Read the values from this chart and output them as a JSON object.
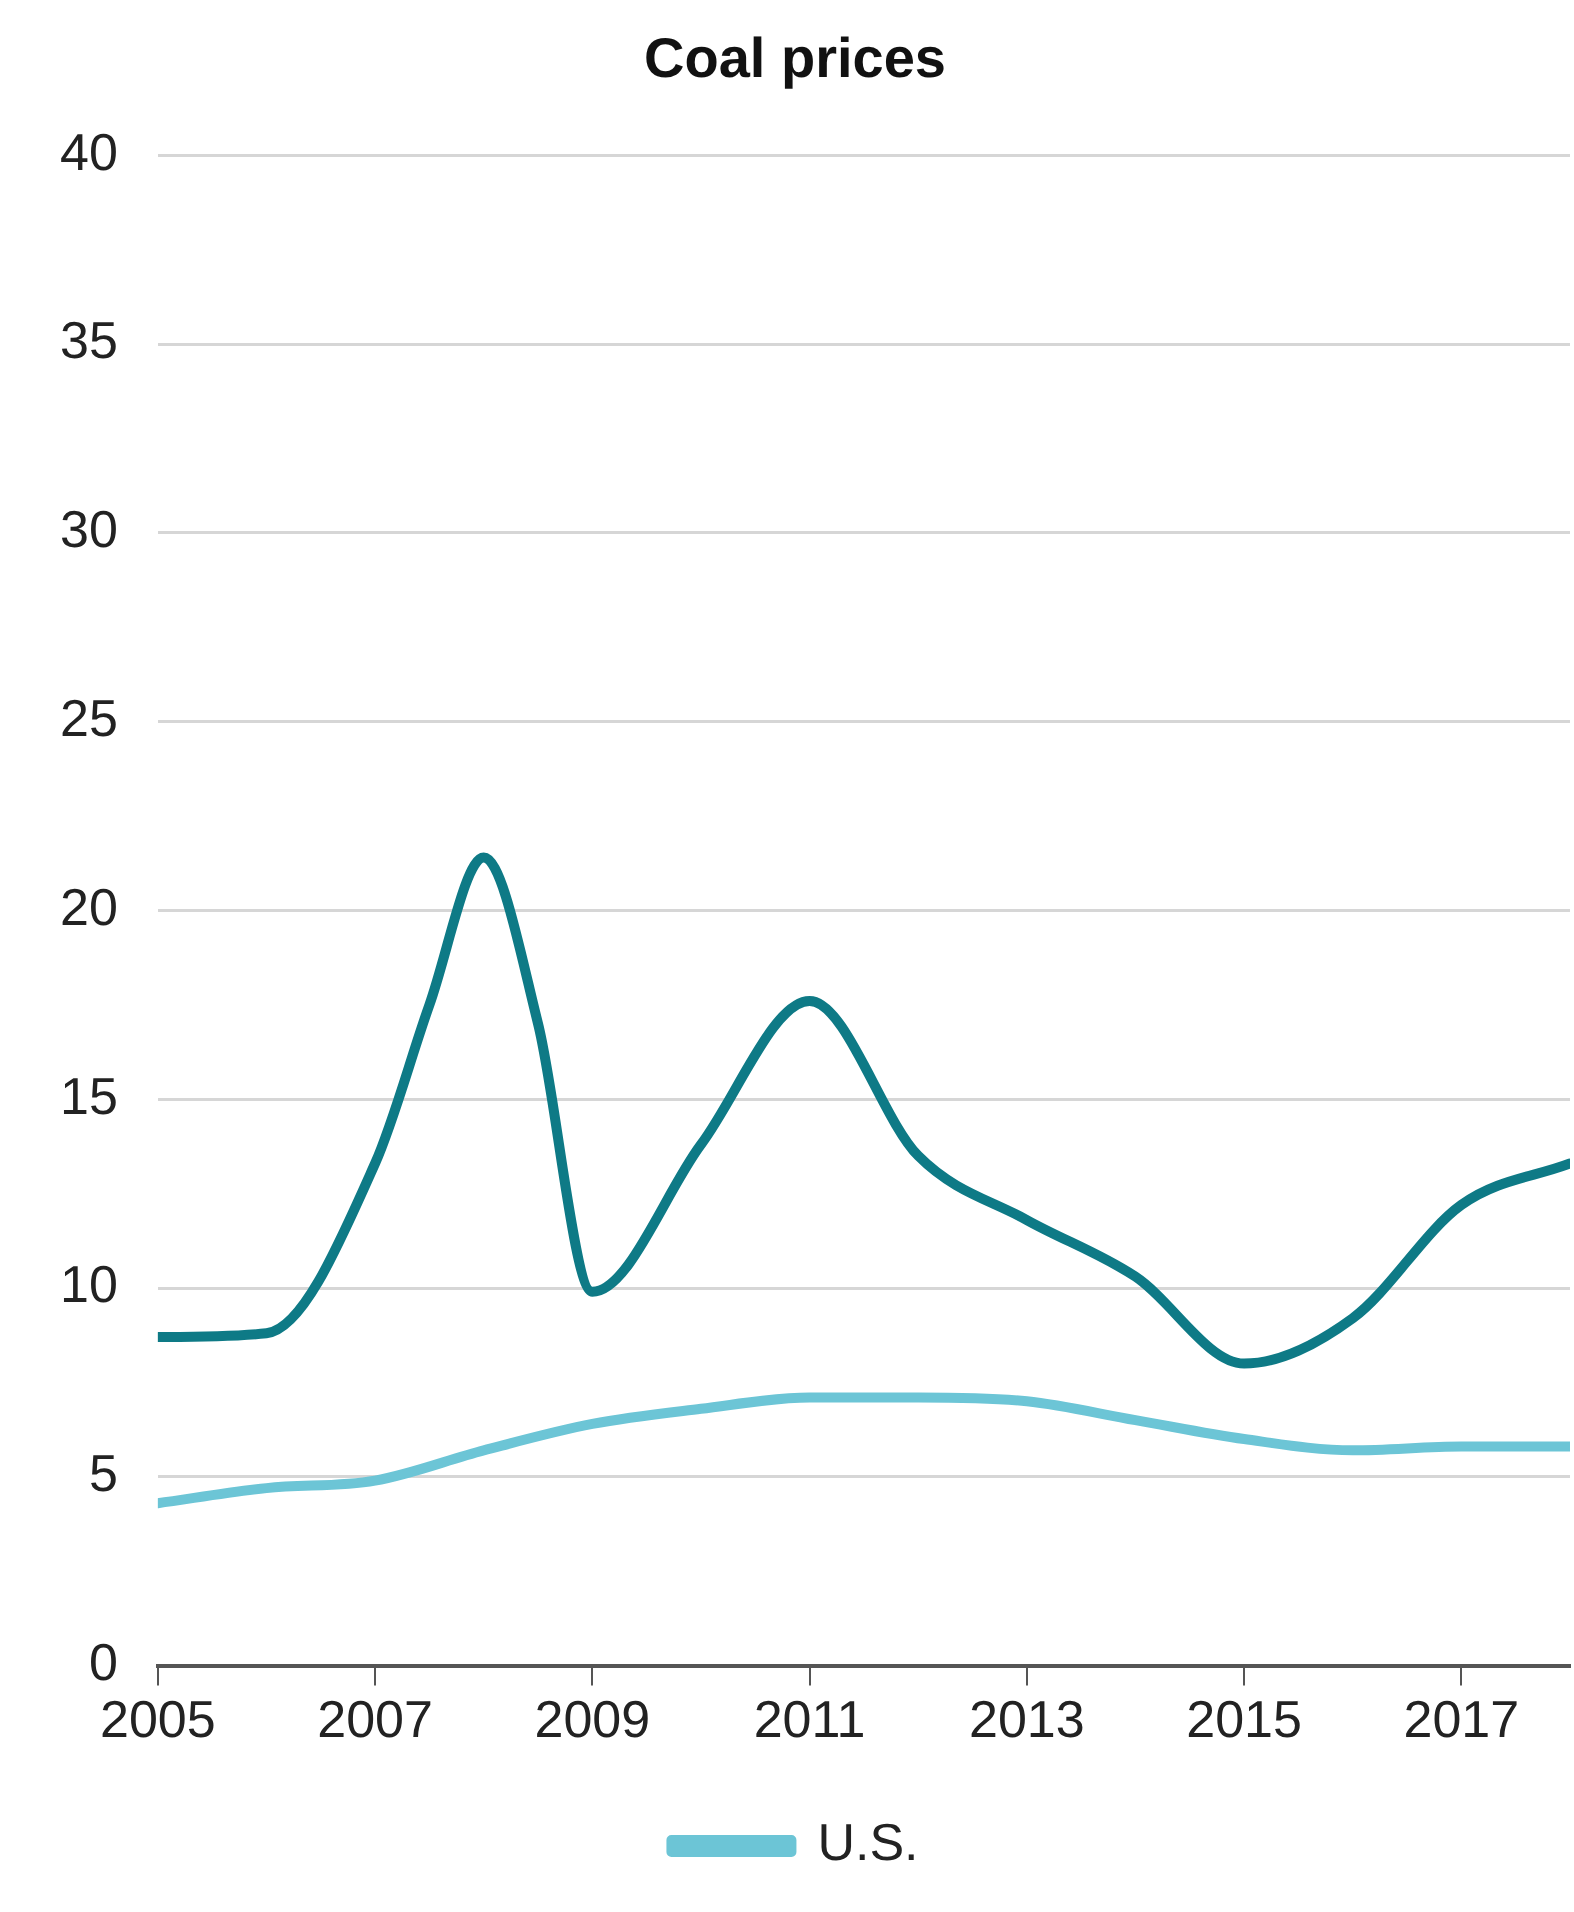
{
  "chart_data": {
    "type": "line",
    "title": "Coal prices",
    "xlim": [
      2005,
      2018
    ],
    "xticks": [
      2005,
      2007,
      2009,
      2011,
      2013,
      2015,
      2017
    ],
    "ylim": [
      0,
      40
    ],
    "yticks": [
      0,
      5,
      10,
      15,
      20,
      25,
      30,
      35,
      40
    ],
    "grid": "y",
    "legend": "bottom",
    "marker": "none",
    "line_style": "solid",
    "series": [
      {
        "color": "#0e7a86",
        "x": [
          2005,
          2006,
          2007,
          2007.5,
          2008,
          2008.5,
          2009,
          2010,
          2011,
          2012,
          2013,
          2014,
          2015,
          2016,
          2017,
          2018
        ],
        "values": [
          8.7,
          8.8,
          13.3,
          17.5,
          21.4,
          17,
          9.9,
          13.8,
          17.6,
          13.5,
          11.8,
          10.3,
          8.0,
          9.2,
          12.2,
          13.3
        ]
      },
      {
        "name": "U.S.",
        "color": "#6cc5d6",
        "x": [
          2005,
          2006,
          2007,
          2008,
          2009,
          2010,
          2011,
          2012,
          2013,
          2014,
          2015,
          2016,
          2017,
          2018
        ],
        "values": [
          4.3,
          4.7,
          4.9,
          5.7,
          6.4,
          6.8,
          7.1,
          7.1,
          7.0,
          6.5,
          6.0,
          5.7,
          5.8,
          5.8
        ]
      }
    ]
  }
}
